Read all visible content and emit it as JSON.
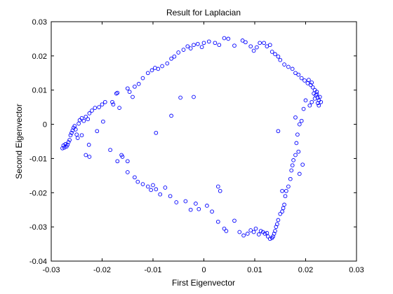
{
  "chart_data": {
    "type": "scatter",
    "title": "Result for Laplacian",
    "xlabel": "First Eigenvector",
    "ylabel": "Second Eigenvector",
    "xlim": [
      -0.03,
      0.03
    ],
    "ylim": [
      -0.04,
      0.03
    ],
    "xticks": [
      -0.03,
      -0.02,
      -0.01,
      0,
      0.01,
      0.02,
      0.03
    ],
    "xtick_labels": [
      "-0.03",
      "-0.02",
      "-0.01",
      "0",
      "0.01",
      "0.02",
      "0.03"
    ],
    "yticks": [
      -0.04,
      -0.03,
      -0.02,
      -0.01,
      0,
      0.01,
      0.02,
      0.03
    ],
    "ytick_labels": [
      "-0.04",
      "-0.03",
      "-0.02",
      "-0.01",
      "0",
      "0.01",
      "0.02",
      "0.03"
    ],
    "grid": false,
    "marker": "open-circle",
    "marker_color": "#0000ff",
    "series": [
      {
        "points": [
          [
            -0.0278,
            -0.007
          ],
          [
            -0.0276,
            -0.0062
          ],
          [
            -0.0274,
            -0.0068
          ],
          [
            -0.0272,
            -0.0058
          ],
          [
            -0.027,
            -0.0065
          ],
          [
            -0.0268,
            -0.006
          ],
          [
            -0.0266,
            -0.0052
          ],
          [
            -0.0264,
            -0.0046
          ],
          [
            -0.0262,
            -0.0032
          ],
          [
            -0.026,
            -0.0025
          ],
          [
            -0.0258,
            -0.0018
          ],
          [
            -0.0256,
            -0.001
          ],
          [
            -0.0254,
            -0.0005
          ],
          [
            -0.0252,
            -0.0015
          ],
          [
            -0.025,
            -0.003
          ],
          [
            -0.0248,
            -0.004
          ],
          [
            -0.0246,
            0.0002
          ],
          [
            -0.0244,
            0.0012
          ],
          [
            -0.024,
            0.0018
          ],
          [
            -0.0236,
            0.001
          ],
          [
            -0.0232,
            0.0022
          ],
          [
            -0.0228,
            0.0015
          ],
          [
            -0.0225,
            0.0032
          ],
          [
            -0.022,
            0.004
          ],
          [
            -0.0214,
            0.0048
          ],
          [
            -0.0206,
            0.005
          ],
          [
            -0.02,
            0.0058
          ],
          [
            -0.0194,
            0.0065
          ],
          [
            -0.024,
            -0.0032
          ],
          [
            -0.0232,
            -0.009
          ],
          [
            -0.0225,
            -0.0095
          ],
          [
            -0.0226,
            -0.006
          ],
          [
            -0.021,
            -0.002
          ],
          [
            -0.0198,
            0.0008
          ],
          [
            -0.0184,
            -0.0075
          ],
          [
            -0.017,
            -0.0108
          ],
          [
            -0.0162,
            -0.009
          ],
          [
            -0.016,
            -0.0095
          ],
          [
            -0.015,
            -0.0108
          ],
          [
            -0.018,
            0.0065
          ],
          [
            -0.0178,
            0.0058
          ],
          [
            -0.0172,
            0.009
          ],
          [
            -0.017,
            0.0092
          ],
          [
            -0.0166,
            0.0048
          ],
          [
            -0.015,
            0.0105
          ],
          [
            -0.0146,
            0.0095
          ],
          [
            -0.014,
            0.008
          ],
          [
            -0.0136,
            0.011
          ],
          [
            -0.0128,
            0.0118
          ],
          [
            -0.012,
            0.0135
          ],
          [
            -0.011,
            0.015
          ],
          [
            -0.0102,
            0.0158
          ],
          [
            -0.0096,
            0.0165
          ],
          [
            -0.009,
            0.0162
          ],
          [
            -0.0082,
            0.017
          ],
          [
            -0.0072,
            0.0178
          ],
          [
            -0.0064,
            0.0192
          ],
          [
            -0.0058,
            0.0198
          ],
          [
            -0.005,
            0.021
          ],
          [
            -0.004,
            0.0218
          ],
          [
            -0.0032,
            0.0228
          ],
          [
            -0.0026,
            0.0222
          ],
          [
            -0.002,
            0.0232
          ],
          [
            -0.0012,
            0.0235
          ],
          [
            -0.0004,
            0.0226
          ],
          [
            0.0,
            0.0238
          ],
          [
            0.001,
            0.0242
          ],
          [
            0.0022,
            0.0238
          ],
          [
            0.003,
            0.0232
          ],
          [
            0.004,
            0.0252
          ],
          [
            0.0048,
            0.025
          ],
          [
            0.006,
            0.023
          ],
          [
            0.0076,
            0.0245
          ],
          [
            0.0082,
            0.024
          ],
          [
            0.0092,
            0.0228
          ],
          [
            0.0098,
            0.0215
          ],
          [
            0.0104,
            0.0225
          ],
          [
            0.011,
            0.0238
          ],
          [
            0.0118,
            0.0238
          ],
          [
            0.0124,
            0.0228
          ],
          [
            0.013,
            0.0232
          ],
          [
            0.0134,
            0.0212
          ],
          [
            0.014,
            0.0205
          ],
          [
            0.0146,
            0.0198
          ],
          [
            0.015,
            0.0188
          ],
          [
            0.0158,
            0.0175
          ],
          [
            0.0166,
            0.0168
          ],
          [
            0.0174,
            0.0162
          ],
          [
            0.018,
            0.015
          ],
          [
            0.0186,
            0.0145
          ],
          [
            0.0192,
            0.0135
          ],
          [
            0.0198,
            0.0128
          ],
          [
            0.0204,
            0.012
          ],
          [
            0.0206,
            0.013
          ],
          [
            0.021,
            0.0115
          ],
          [
            0.0212,
            0.0122
          ],
          [
            0.0214,
            0.0108
          ],
          [
            0.0216,
            0.009
          ],
          [
            0.0218,
            0.01
          ],
          [
            0.022,
            0.0085
          ],
          [
            0.0222,
            0.0095
          ],
          [
            0.0224,
            0.0078
          ],
          [
            0.0226,
            0.007
          ],
          [
            0.0228,
            0.008
          ],
          [
            0.0224,
            0.0062
          ],
          [
            0.0226,
            0.0055
          ],
          [
            0.023,
            0.0065
          ],
          [
            0.0222,
            0.0088
          ],
          [
            0.0218,
            0.0075
          ],
          [
            0.0212,
            0.0065
          ],
          [
            0.0208,
            0.0055
          ],
          [
            0.02,
            0.007
          ],
          [
            0.0196,
            0.0045
          ],
          [
            0.0192,
            0.001
          ],
          [
            0.0188,
            0.0
          ],
          [
            0.0184,
            -0.003
          ],
          [
            0.0182,
            -0.0055
          ],
          [
            0.018,
            -0.009
          ],
          [
            0.0176,
            -0.0105
          ],
          [
            0.0174,
            -0.012
          ],
          [
            0.0172,
            -0.0135
          ],
          [
            0.017,
            -0.016
          ],
          [
            0.0166,
            -0.0182
          ],
          [
            0.0162,
            -0.0195
          ],
          [
            0.016,
            -0.021
          ],
          [
            0.0158,
            -0.0235
          ],
          [
            0.0156,
            -0.0245
          ],
          [
            0.0154,
            -0.0255
          ],
          [
            0.015,
            -0.0262
          ],
          [
            0.0146,
            -0.028
          ],
          [
            0.0144,
            -0.0292
          ],
          [
            0.0142,
            -0.03
          ],
          [
            0.014,
            -0.0312
          ],
          [
            0.0138,
            -0.032
          ],
          [
            0.0136,
            -0.0328
          ],
          [
            0.0134,
            -0.0332
          ],
          [
            0.013,
            -0.0335
          ],
          [
            0.0126,
            -0.0328
          ],
          [
            0.0124,
            -0.0318
          ],
          [
            0.012,
            -0.032
          ],
          [
            0.0116,
            -0.0315
          ],
          [
            0.0112,
            -0.0312
          ],
          [
            0.0108,
            -0.0322
          ],
          [
            0.0102,
            -0.0305
          ],
          [
            0.0098,
            -0.0315
          ],
          [
            0.0092,
            -0.031
          ],
          [
            0.0086,
            -0.032
          ],
          [
            0.0078,
            -0.0325
          ],
          [
            0.007,
            -0.0315
          ],
          [
            0.006,
            -0.0282
          ],
          [
            0.0044,
            -0.0312
          ],
          [
            0.004,
            -0.0305
          ],
          [
            0.0028,
            -0.0285
          ],
          [
            0.0016,
            -0.0255
          ],
          [
            0.0006,
            -0.0238
          ],
          [
            -0.001,
            -0.0248
          ],
          [
            -0.0016,
            -0.0232
          ],
          [
            -0.0026,
            -0.025
          ],
          [
            -0.0036,
            -0.0225
          ],
          [
            -0.0054,
            -0.0228
          ],
          [
            -0.0066,
            -0.021
          ],
          [
            -0.0076,
            -0.0185
          ],
          [
            -0.0086,
            -0.0205
          ],
          [
            -0.0094,
            -0.019
          ],
          [
            -0.01,
            -0.0178
          ],
          [
            -0.0104,
            -0.0192
          ],
          [
            -0.011,
            -0.0182
          ],
          [
            -0.012,
            -0.0175
          ],
          [
            -0.013,
            -0.0168
          ],
          [
            -0.0136,
            -0.0155
          ],
          [
            -0.015,
            -0.014
          ],
          [
            -0.002,
            0.008
          ],
          [
            -0.0046,
            0.0078
          ],
          [
            -0.0064,
            0.0025
          ],
          [
            -0.0094,
            -0.0025
          ],
          [
            0.0146,
            -0.002
          ],
          [
            0.0028,
            -0.0182
          ],
          [
            0.0032,
            -0.0195
          ],
          [
            0.0154,
            -0.0195
          ],
          [
            0.018,
            0.002
          ],
          [
            0.0186,
            -0.008
          ],
          [
            0.0194,
            -0.0118
          ],
          [
            0.0188,
            -0.0145
          ]
        ]
      }
    ]
  }
}
